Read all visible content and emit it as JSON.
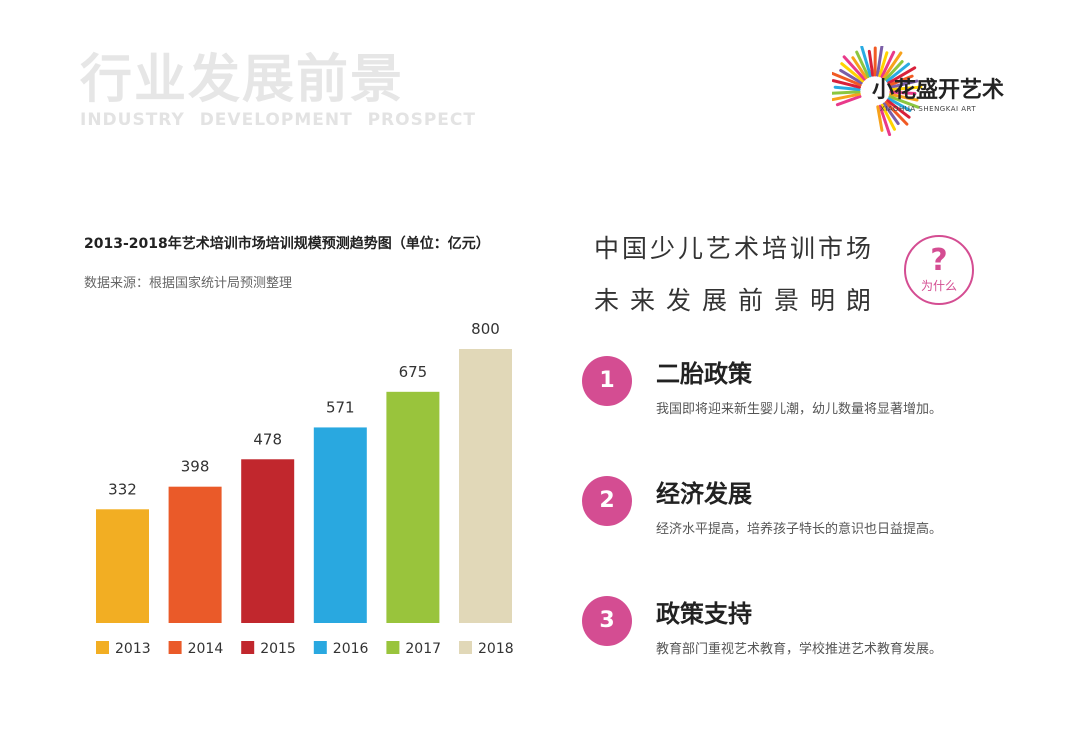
{
  "header": {
    "title": "行业发展前景",
    "subtitle": "INDUSTRY DEVELOPMENT PROSPECT"
  },
  "logo": {
    "name": "小花盛开艺术",
    "sub": "XIAOHUA SHENGKAI ART",
    "ray_colors": [
      "#e9398a",
      "#f7a21b",
      "#8cc63f",
      "#29abe2",
      "#d8203a",
      "#f15a24",
      "#7b5ea7",
      "#ffd400"
    ]
  },
  "chart_header": {
    "title": "2013-2018年艺术培训市场培训规模预测趋势图（单位：亿元）",
    "source": "数据来源：根据国家统计局预测整理"
  },
  "chart_data": {
    "type": "bar",
    "categories": [
      "2013",
      "2014",
      "2015",
      "2016",
      "2017",
      "2018"
    ],
    "values": [
      332,
      398,
      478,
      571,
      675,
      800
    ],
    "colors": [
      "#f2ae23",
      "#ea5a29",
      "#c1272d",
      "#29a8e0",
      "#99c43c",
      "#e1d8b8"
    ],
    "title": "2013-2018年艺术培训市场培训规模预测趋势图（单位：亿元）",
    "legend": [
      "2013",
      "2014",
      "2015",
      "2016",
      "2017",
      "2018"
    ],
    "legend_position": "bottom",
    "grid": false,
    "data_labels": true
  },
  "headline": {
    "line1": "中国少儿艺术培训市场",
    "line2": "未来发展前景明朗"
  },
  "badge": {
    "symbol": "?",
    "text": "为什么",
    "color": "#d44d92"
  },
  "reasons": [
    {
      "number": "1",
      "title": "二胎政策",
      "desc": "我国即将迎来新生婴儿潮，幼儿数量将显著增加。"
    },
    {
      "number": "2",
      "title": "经济发展",
      "desc": "经济水平提高，培养孩子特长的意识也日益提高。"
    },
    {
      "number": "3",
      "title": "政策支持",
      "desc": "教育部门重视艺术教育，学校推进艺术教育发展。"
    }
  ]
}
